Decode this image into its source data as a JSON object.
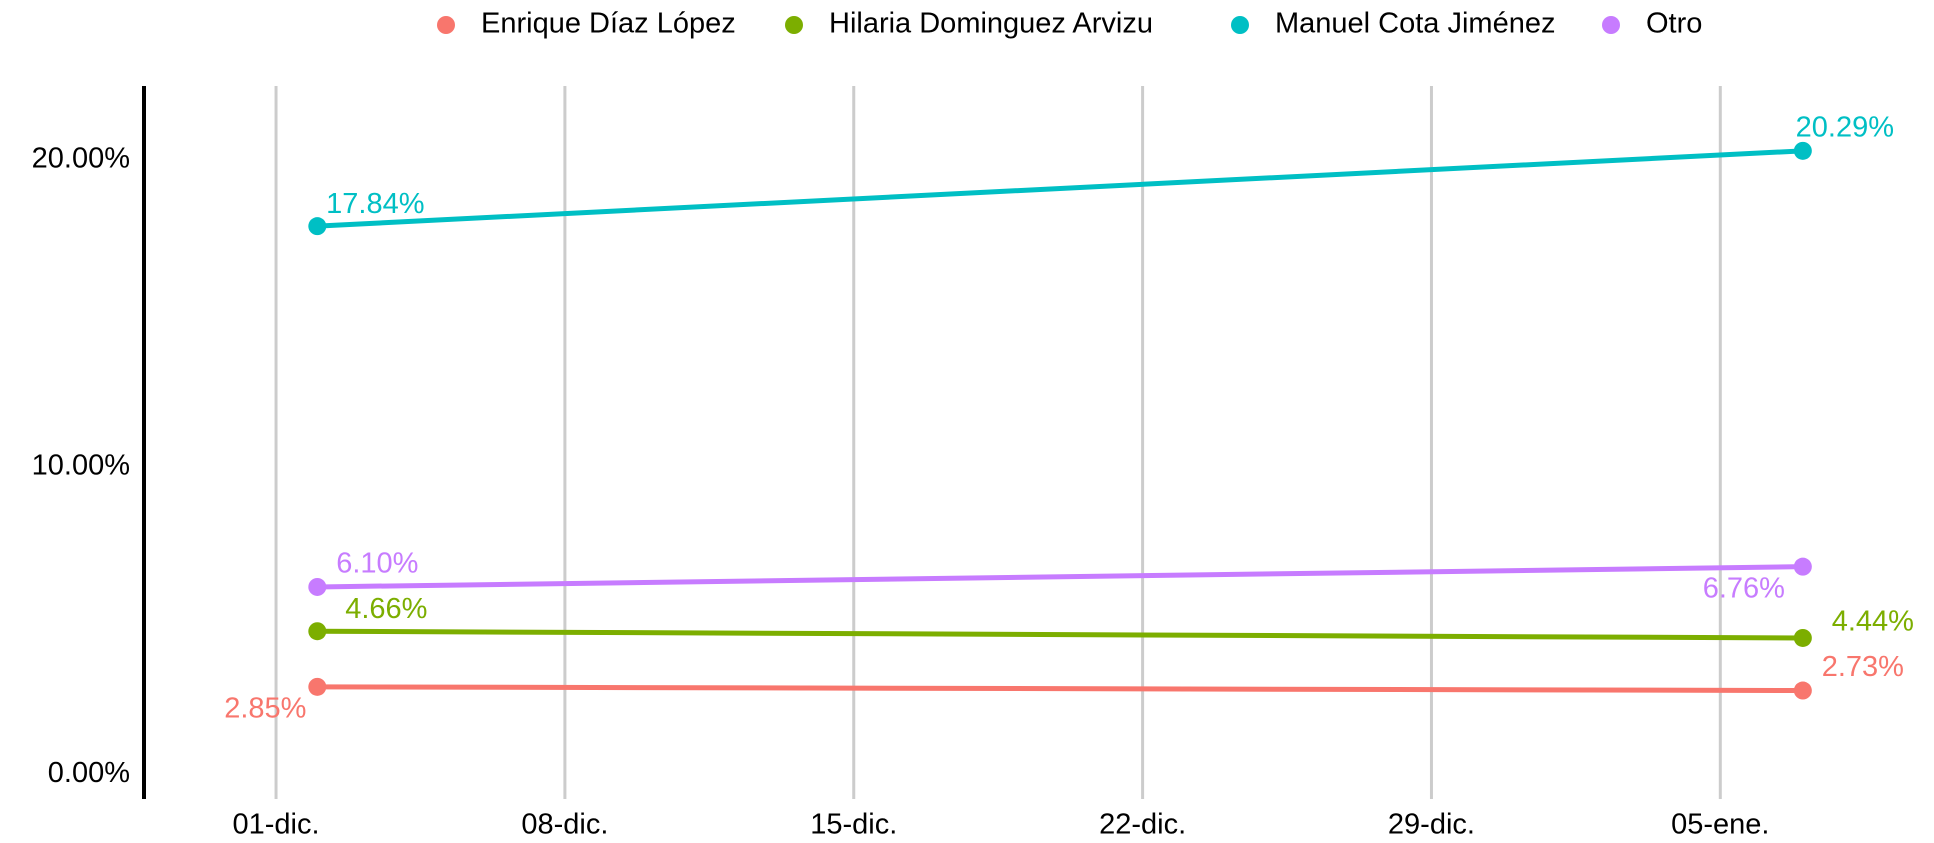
{
  "chart_data": {
    "type": "line",
    "x": [
      1,
      37
    ],
    "xlim": [
      -3.2,
      39.5
    ],
    "xticks": [
      {
        "value": 0,
        "label": "01-dic."
      },
      {
        "value": 7,
        "label": "08-dic."
      },
      {
        "value": 14,
        "label": "15-dic."
      },
      {
        "value": 21,
        "label": "22-dic."
      },
      {
        "value": 28,
        "label": "29-dic."
      },
      {
        "value": 35,
        "label": "05-ene."
      }
    ],
    "ylim": [
      -0.8,
      22.4
    ],
    "yticks": [
      {
        "value": 0,
        "label": "0.00%"
      },
      {
        "value": 10,
        "label": "10.00%"
      },
      {
        "value": 20,
        "label": "20.00%"
      }
    ],
    "grid": "x",
    "legend": "top",
    "series": [
      {
        "name": "Enrique Díaz López",
        "color": "#F8766D",
        "values": [
          2.85,
          2.73
        ],
        "value_labels": [
          "2.85%",
          "2.73%"
        ]
      },
      {
        "name": "Hilaria Dominguez Arvizu",
        "color": "#7CAE00",
        "values": [
          4.66,
          4.44
        ],
        "value_labels": [
          "4.66%",
          "4.44%"
        ]
      },
      {
        "name": "Manuel Cota Jiménez",
        "color": "#00BFC4",
        "values": [
          17.84,
          20.29
        ],
        "value_labels": [
          "17.84%",
          "20.29%"
        ]
      },
      {
        "name": "Otro",
        "color": "#C77CFF",
        "values": [
          6.1,
          6.76
        ],
        "value_labels": [
          "6.10%",
          "6.76%"
        ]
      }
    ]
  }
}
